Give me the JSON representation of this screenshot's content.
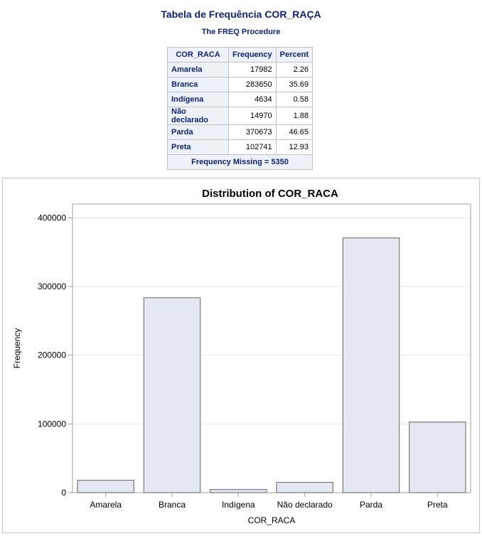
{
  "header": {
    "title": "Tabela de Frequência COR_RAÇA",
    "subtitle": "The FREQ Procedure"
  },
  "freq_table": {
    "columns": [
      "COR_RACA",
      "Frequency",
      "Percent"
    ],
    "rows": [
      {
        "label": "Amarela",
        "frequency": "17982",
        "percent": "2.26"
      },
      {
        "label": "Branca",
        "frequency": "283650",
        "percent": "35.69"
      },
      {
        "label": "Indígena",
        "frequency": "4634",
        "percent": "0.58"
      },
      {
        "label": "Não declarado",
        "frequency": "14970",
        "percent": "1.88"
      },
      {
        "label": "Parda",
        "frequency": "370673",
        "percent": "46.65"
      },
      {
        "label": "Preta",
        "frequency": "102741",
        "percent": "12.93"
      }
    ],
    "footer": "Frequency Missing = 5350"
  },
  "chart_data": {
    "type": "bar",
    "title": "Distribution of COR_RACA",
    "xlabel": "COR_RACA",
    "ylabel": "Frequency",
    "categories": [
      "Amarela",
      "Branca",
      "Indígena",
      "Não declarado",
      "Parda",
      "Preta"
    ],
    "values": [
      17982,
      283650,
      4634,
      14970,
      370673,
      102741
    ],
    "ylim": [
      0,
      420000
    ],
    "yticks": [
      0,
      100000,
      200000,
      300000,
      400000
    ],
    "grid": true,
    "colors": {
      "bar_fill": "#e4e8f2",
      "bar_stroke": "#7a7a7a",
      "grid": "#e6e6e6",
      "axis": "#a0a0a0"
    }
  }
}
